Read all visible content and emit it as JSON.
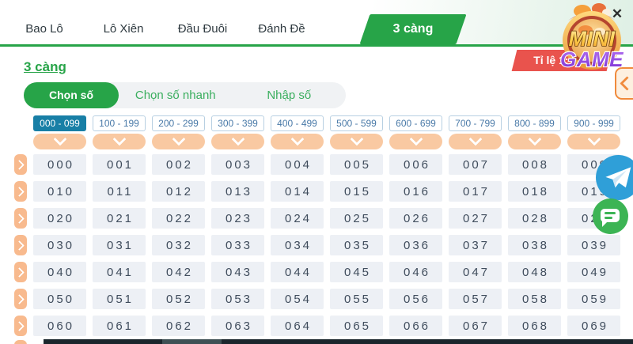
{
  "header": {
    "tabs": [
      {
        "key": "bao-lo",
        "label": "Bao Lô",
        "active": false
      },
      {
        "key": "lo-xien",
        "label": "Lô Xiên",
        "active": false
      },
      {
        "key": "dau-duoi",
        "label": "Đầu Đuôi",
        "active": false
      },
      {
        "key": "danh-de",
        "label": "Đánh Đề",
        "active": false
      },
      {
        "key": "3-cang",
        "label": "3 càng",
        "active": true
      }
    ],
    "close_label": "✕"
  },
  "logo": {
    "line1": "MINI",
    "line2": "GAME"
  },
  "page": {
    "title": "3 càng",
    "ratio_label": "Tỉ lệ 1: 900"
  },
  "subtabs": [
    {
      "key": "chon-so",
      "label": "Chọn số",
      "active": true
    },
    {
      "key": "chon-so-nhanh",
      "label": "Chọn số nhanh",
      "active": false
    },
    {
      "key": "nhap-so",
      "label": "Nhập số",
      "active": false
    }
  ],
  "ranges": [
    {
      "label": "000 - 099",
      "active": true
    },
    {
      "label": "100 - 199",
      "active": false
    },
    {
      "label": "200 - 299",
      "active": false
    },
    {
      "label": "300 - 399",
      "active": false
    },
    {
      "label": "400 - 499",
      "active": false
    },
    {
      "label": "500 - 599",
      "active": false
    },
    {
      "label": "600 - 699",
      "active": false
    },
    {
      "label": "700 - 799",
      "active": false
    },
    {
      "label": "800 - 899",
      "active": false
    },
    {
      "label": "900 - 999",
      "active": false
    }
  ],
  "grid": {
    "rows": [
      [
        "000",
        "001",
        "002",
        "003",
        "004",
        "005",
        "006",
        "007",
        "008",
        "009"
      ],
      [
        "010",
        "011",
        "012",
        "013",
        "014",
        "015",
        "016",
        "017",
        "018",
        "019"
      ],
      [
        "020",
        "021",
        "022",
        "023",
        "024",
        "025",
        "026",
        "027",
        "028",
        "029"
      ],
      [
        "030",
        "031",
        "032",
        "033",
        "034",
        "035",
        "036",
        "037",
        "038",
        "039"
      ],
      [
        "040",
        "041",
        "042",
        "043",
        "044",
        "045",
        "046",
        "047",
        "048",
        "049"
      ],
      [
        "050",
        "051",
        "052",
        "053",
        "054",
        "055",
        "056",
        "057",
        "058",
        "059"
      ],
      [
        "060",
        "061",
        "062",
        "063",
        "064",
        "065",
        "066",
        "067",
        "068",
        "069"
      ]
    ]
  },
  "icons": {
    "close": "close-icon",
    "dropdown": "chevron-down-icon",
    "row_select": "chevron-right-icon",
    "side_nav": "chevron-left-icon",
    "telegram": "paper-plane-icon",
    "chat": "speech-bubble-icon"
  },
  "colors": {
    "green": "#27a448",
    "teal_active": "#187fa6",
    "range_border": "#b8d0e2",
    "range_text": "#4a7aa8",
    "orange_pill": "#f9c9a2",
    "orange_arrow": "#f8ba8e",
    "red_badge": "#e9534d",
    "telegram_blue": "#2f9fd8",
    "chat_green": "#3cb454",
    "cell_bg": "#edf0f5",
    "cell_text": "#3f4c5c"
  }
}
